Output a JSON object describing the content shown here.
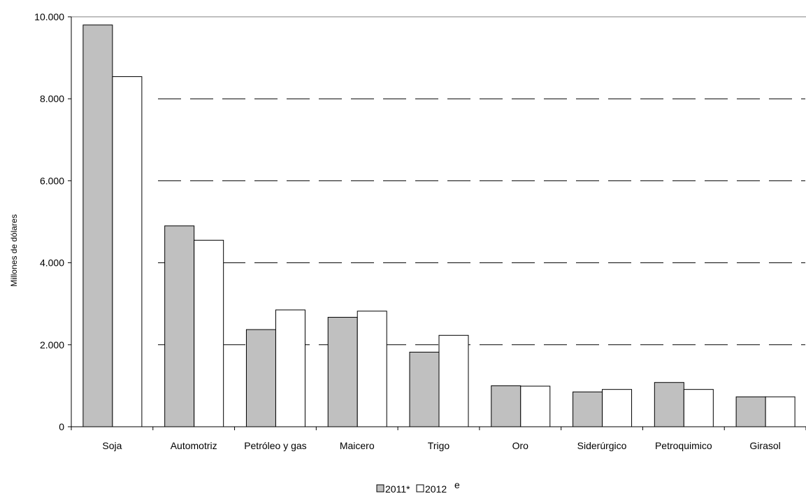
{
  "chart_data": {
    "type": "bar",
    "ylabel": "Millones de dólares",
    "ylim": [
      0,
      10000
    ],
    "yticks": [
      {
        "value": 0,
        "label": "0"
      },
      {
        "value": 2000,
        "label": "2.000"
      },
      {
        "value": 4000,
        "label": "4.000"
      },
      {
        "value": 6000,
        "label": "6.000"
      },
      {
        "value": 8000,
        "label": "8.000"
      },
      {
        "value": 10000,
        "label": "10.000"
      }
    ],
    "grid": "dashed horizontal",
    "categories": [
      "Soja",
      "Automotriz",
      "Petróleo y gas",
      "Maicero",
      "Trigo",
      "Oro",
      "Siderúrgico",
      "Petroquimico",
      "Girasol"
    ],
    "series": [
      {
        "name": "2011*",
        "color": "#c0c0c0",
        "values": [
          9800,
          4900,
          2370,
          2670,
          1820,
          1000,
          850,
          1080,
          730
        ]
      },
      {
        "name": "2012 ",
        "superscript": "e",
        "color": "#ffffff",
        "values": [
          8540,
          4550,
          2850,
          2820,
          2230,
          990,
          910,
          910,
          730
        ]
      }
    ],
    "legend_position": "bottom-center"
  }
}
